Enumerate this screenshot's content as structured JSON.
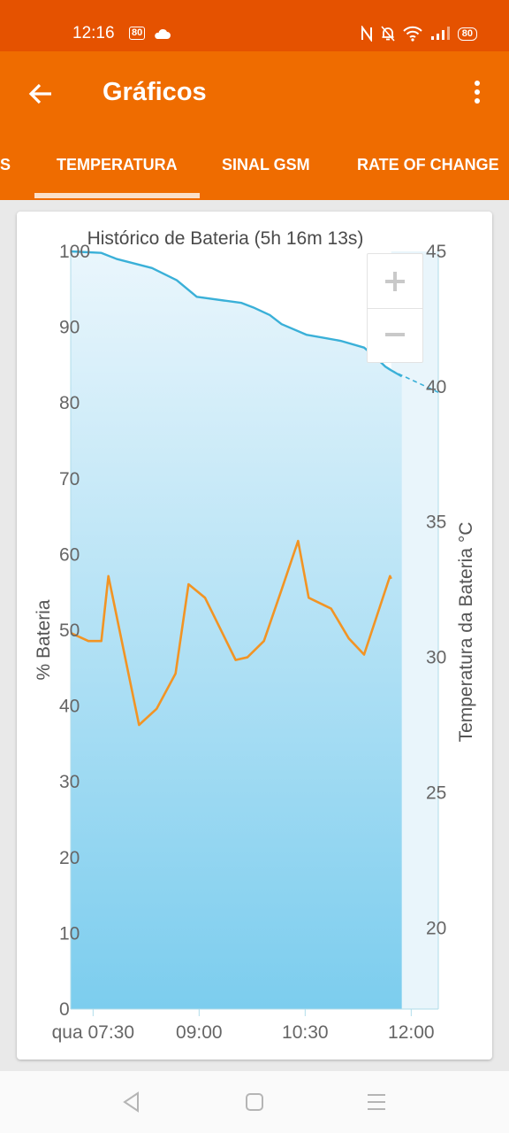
{
  "status_bar": {
    "time": "12:16",
    "badge": "80",
    "battery": "80"
  },
  "app_bar": {
    "title": "Gráficos"
  },
  "tabs": [
    "S",
    "TEMPERATURA",
    "SINAL GSM",
    "RATE OF CHANGE"
  ],
  "colors": {
    "status": "#e55200",
    "appbar": "#ef6c00",
    "battery_line": "#3ab0d8",
    "temperature_line": "#f29424"
  },
  "chart_data": {
    "type": "line",
    "title": "Histórico de Bateria (5h 16m 13s)",
    "xlabel": "",
    "ylabel": "% Bateria",
    "y2label": "Temperatura da Bateria °C",
    "ylim": [
      0,
      100
    ],
    "y2lim": [
      17,
      45
    ],
    "y_ticks": [
      "0",
      "10",
      "20",
      "30",
      "40",
      "50",
      "60",
      "70",
      "80",
      "90",
      "100"
    ],
    "y2_ticks": [
      "20",
      "25",
      "30",
      "35",
      "40",
      "45"
    ],
    "x_ticks": [
      "qua 07:30",
      "09:00",
      "10:30",
      "12:00"
    ],
    "x_tick_minutes": [
      450,
      540,
      630,
      720
    ],
    "grid": false,
    "series": [
      {
        "axis": "left",
        "unit": "%",
        "x_minutes": [
          431,
          457,
          470,
          500,
          521,
          538,
          576,
          586,
          600,
          610,
          631,
          660,
          680,
          690,
          698,
          701,
          703,
          712
        ],
        "values": [
          100,
          99.8,
          99,
          97.8,
          96.2,
          94,
          93.2,
          92.6,
          91.6,
          90.4,
          89,
          88.2,
          87.3,
          86,
          84.8,
          84.5,
          84.3,
          83.5
        ]
      },
      {
        "axis": "left",
        "unit": "%",
        "projection": true,
        "x_minutes": [
          703,
          743
        ],
        "values": [
          84.3,
          81.4
        ]
      },
      {
        "axis": "right",
        "unit": "°C",
        "x_minutes": [
          431,
          446,
          457,
          463,
          489,
          504,
          520,
          531,
          545,
          571,
          581,
          595,
          610,
          624,
          633,
          652,
          667,
          680,
          702,
          703
        ],
        "values": [
          30.9,
          30.6,
          30.6,
          33.0,
          27.5,
          28.1,
          29.4,
          32.7,
          32.2,
          29.9,
          30.0,
          30.6,
          32.5,
          34.3,
          32.2,
          31.8,
          30.7,
          30.1,
          33.0,
          32.9
        ]
      }
    ]
  }
}
